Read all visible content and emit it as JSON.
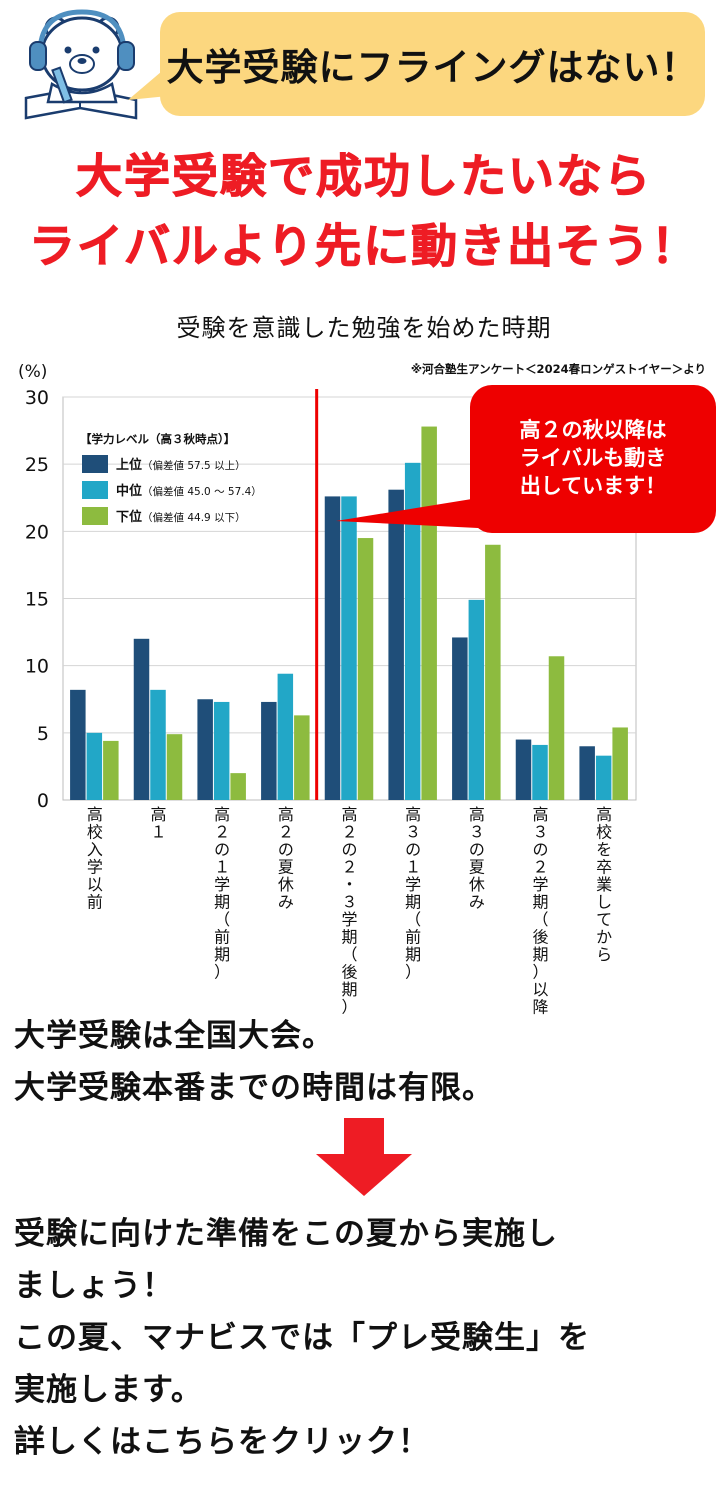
{
  "header": {
    "bubble_text": "大学受験にフライングはない！",
    "headline_line1": "大学受験で成功したいなら",
    "headline_line2": "ライバルより先に動き出そう！"
  },
  "chart_title": "受験を意識した勉強を始めた時期",
  "source_note": "※河合塾生アンケート＜2024春ロンゲストイヤー＞より",
  "chart_data": {
    "type": "bar",
    "title": "受験を意識した勉強を始めた時期",
    "ylabel": "(%)",
    "ylim": [
      0,
      30
    ],
    "yticks": [
      "0",
      "5",
      "10",
      "15",
      "20",
      "25",
      "30"
    ],
    "categories": [
      "高校入学以前",
      "高１",
      "高２の１学期（前期）",
      "高２の夏休み",
      "高２の２・３学期（後期）",
      "高３の１学期（前期）",
      "高３の夏休み",
      "高３の２学期（後期）以降",
      "高校を卒業してから"
    ],
    "legend_title": "【学力レベル（高３秋時点）】",
    "legend_position": "top-left",
    "grid": true,
    "series": [
      {
        "name": "上位",
        "detail": "（偏差値 57.5 以上）",
        "color": "#1f4e79",
        "values": [
          8.2,
          12.0,
          7.5,
          7.3,
          22.6,
          23.1,
          12.1,
          4.5,
          4.0
        ]
      },
      {
        "name": "中位",
        "detail": "（偏差値 45.0 ～ 57.4）",
        "color": "#22a7c7",
        "values": [
          5.0,
          8.2,
          7.3,
          9.4,
          22.6,
          25.1,
          14.9,
          4.1,
          3.3
        ]
      },
      {
        "name": "下位",
        "detail": "（偏差値 44.9 以下）",
        "color": "#8dbb3f",
        "values": [
          4.4,
          4.9,
          2.0,
          6.3,
          19.5,
          27.8,
          19.0,
          10.7,
          5.4
        ]
      }
    ],
    "annotation": {
      "lines": [
        "高２の秋以降は",
        "ライバルも動き",
        "出しています！"
      ],
      "color": "#ee0000"
    }
  },
  "body": {
    "para1_line1": "大学受験は全国大会。",
    "para1_line2": "大学受験本番までの時間は有限。",
    "para2_line1": "受験に向けた準備をこの夏から実施し",
    "para2_line2": "ましょう！",
    "para2_line3": "この夏、マナビスでは「プレ受験生」を",
    "para2_line4": "実施します。",
    "para2_line5": "詳しくはこちらをクリック！"
  },
  "icons": {
    "mascot": "bear-mascot-icon",
    "arrow": "down-arrow-icon"
  }
}
